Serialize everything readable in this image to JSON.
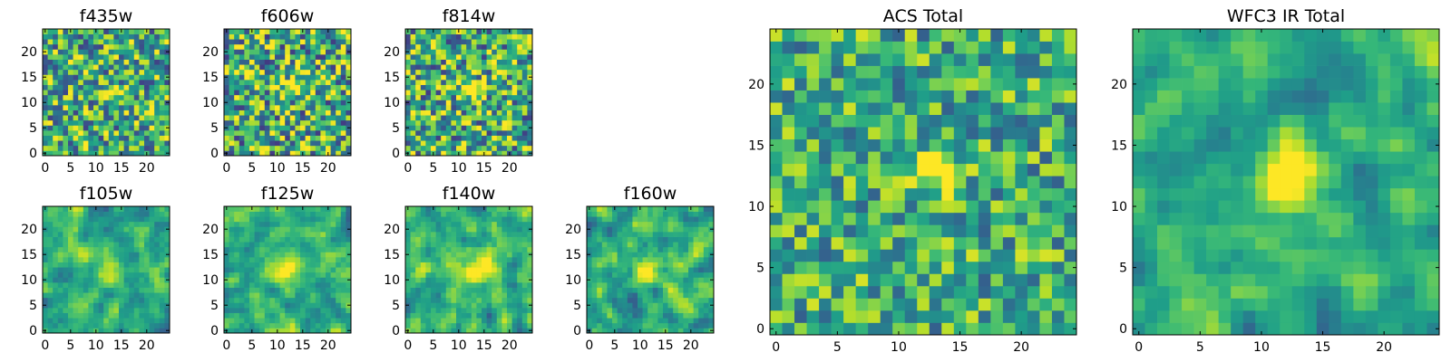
{
  "figure_title": "",
  "colormap": {
    "name": "viridis",
    "stops": [
      "#440154",
      "#482878",
      "#3e4989",
      "#31688e",
      "#26828e",
      "#1f9e89",
      "#35b779",
      "#6ece58",
      "#b5de2b",
      "#fde725"
    ]
  },
  "chart_data": [
    {
      "type": "heatmap",
      "title": "f435w",
      "xlabel": "",
      "ylabel": "",
      "xlim": [
        0,
        24
      ],
      "ylim": [
        0,
        24
      ],
      "grid": false,
      "origin": "lower",
      "xticks": [
        "0",
        "5",
        "10",
        "15",
        "20"
      ],
      "yticks": [
        "0",
        "5",
        "10",
        "15",
        "20"
      ],
      "size": [
        25,
        25
      ],
      "noise": 0.26,
      "seed": 11,
      "source": {
        "center": [
          13,
          12
        ],
        "width": 1.4,
        "amplitude": 0.35
      }
    },
    {
      "type": "heatmap",
      "title": "f606w",
      "xlabel": "",
      "ylabel": "",
      "xlim": [
        0,
        24
      ],
      "ylim": [
        0,
        24
      ],
      "grid": false,
      "origin": "lower",
      "xticks": [
        "0",
        "5",
        "10",
        "15",
        "20"
      ],
      "yticks": [
        "0",
        "5",
        "10",
        "15",
        "20"
      ],
      "size": [
        25,
        25
      ],
      "noise": 0.28,
      "seed": 23,
      "source": {
        "center": [
          13,
          13
        ],
        "width": 1.5,
        "amplitude": 0.45
      }
    },
    {
      "type": "heatmap",
      "title": "f814w",
      "xlabel": "",
      "ylabel": "",
      "xlim": [
        0,
        24
      ],
      "ylim": [
        0,
        24
      ],
      "grid": false,
      "origin": "lower",
      "xticks": [
        "0",
        "5",
        "10",
        "15",
        "20"
      ],
      "yticks": [
        "0",
        "5",
        "10",
        "15",
        "20"
      ],
      "size": [
        25,
        25
      ],
      "noise": 0.27,
      "seed": 37,
      "source": {
        "center": [
          13,
          12
        ],
        "width": 1.6,
        "amplitude": 0.42
      }
    },
    {
      "type": "heatmap",
      "title": "f105w",
      "xlabel": "",
      "ylabel": "",
      "xlim": [
        0,
        24
      ],
      "ylim": [
        0,
        24
      ],
      "grid": false,
      "origin": "lower",
      "xticks": [
        "0",
        "5",
        "10",
        "15",
        "20"
      ],
      "yticks": [
        "0",
        "5",
        "10",
        "15",
        "20"
      ],
      "size": [
        25,
        25
      ],
      "noise": 0.2,
      "seed": 41,
      "smooth": true,
      "source": {
        "center": [
          13,
          12
        ],
        "width": 2.0,
        "amplitude": 0.35
      }
    },
    {
      "type": "heatmap",
      "title": "f125w",
      "xlabel": "",
      "ylabel": "",
      "xlim": [
        0,
        24
      ],
      "ylim": [
        0,
        24
      ],
      "grid": false,
      "origin": "lower",
      "xticks": [
        "0",
        "5",
        "10",
        "15",
        "20"
      ],
      "yticks": [
        "0",
        "5",
        "10",
        "15",
        "20"
      ],
      "size": [
        25,
        25
      ],
      "noise": 0.2,
      "seed": 53,
      "smooth": true,
      "source": {
        "center": [
          12,
          12
        ],
        "width": 2.0,
        "amplitude": 0.35
      }
    },
    {
      "type": "heatmap",
      "title": "f140w",
      "xlabel": "",
      "ylabel": "",
      "xlim": [
        0,
        24
      ],
      "ylim": [
        0,
        24
      ],
      "grid": false,
      "origin": "lower",
      "xticks": [
        "0",
        "5",
        "10",
        "15",
        "20"
      ],
      "yticks": [
        "0",
        "5",
        "10",
        "15",
        "20"
      ],
      "size": [
        25,
        25
      ],
      "noise": 0.2,
      "seed": 67,
      "smooth": true,
      "source": {
        "center": [
          14,
          13
        ],
        "width": 2.2,
        "amplitude": 0.38
      }
    },
    {
      "type": "heatmap",
      "title": "f160w",
      "xlabel": "",
      "ylabel": "",
      "xlim": [
        0,
        24
      ],
      "ylim": [
        0,
        24
      ],
      "grid": false,
      "origin": "lower",
      "xticks": [
        "0",
        "5",
        "10",
        "15",
        "20"
      ],
      "yticks": [
        "0",
        "5",
        "10",
        "15",
        "20"
      ],
      "size": [
        25,
        25
      ],
      "noise": 0.2,
      "seed": 79,
      "smooth": true,
      "source": {
        "center": [
          12,
          12
        ],
        "width": 1.8,
        "amplitude": 0.5
      }
    },
    {
      "type": "heatmap",
      "title": "ACS Total",
      "xlabel": "",
      "ylabel": "",
      "xlim": [
        0,
        24
      ],
      "ylim": [
        0,
        24
      ],
      "grid": false,
      "origin": "lower",
      "xticks": [
        "0",
        "5",
        "10",
        "15",
        "20"
      ],
      "yticks": [
        "0",
        "5",
        "10",
        "15",
        "20"
      ],
      "size": [
        25,
        25
      ],
      "noise": 0.2,
      "seed": 97,
      "source": {
        "center": [
          13,
          13
        ],
        "width": 1.2,
        "amplitude": 0.55
      }
    },
    {
      "type": "heatmap",
      "title": "WFC3 IR Total",
      "xlabel": "",
      "ylabel": "",
      "xlim": [
        0,
        24
      ],
      "ylim": [
        0,
        24
      ],
      "grid": false,
      "origin": "lower",
      "xticks": [
        "0",
        "5",
        "10",
        "15",
        "20"
      ],
      "yticks": [
        "0",
        "5",
        "10",
        "15",
        "20"
      ],
      "size": [
        25,
        25
      ],
      "noise": 0.18,
      "seed": 101,
      "smooth": true,
      "source": {
        "center": [
          12,
          13
        ],
        "width": 1.8,
        "amplitude": 0.45
      }
    }
  ]
}
